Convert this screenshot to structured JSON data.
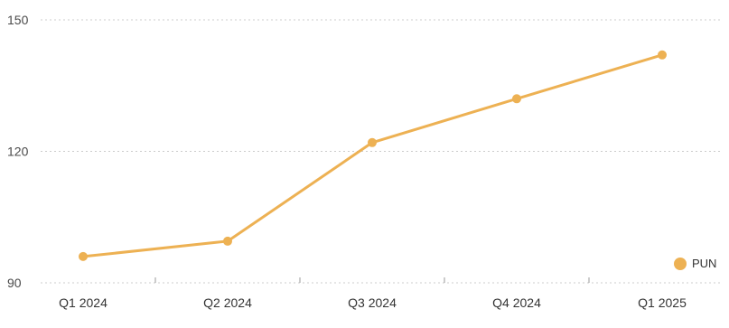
{
  "chart_data": {
    "type": "line",
    "title": "",
    "xlabel": "",
    "ylabel": "",
    "categories": [
      "Q1 2024",
      "Q2 2024",
      "Q3 2024",
      "Q4 2024",
      "Q1 2025"
    ],
    "series": [
      {
        "name": "PUN",
        "values": [
          96,
          99.5,
          122,
          132,
          142
        ],
        "color": "#EDB153"
      }
    ],
    "ylim": [
      90,
      150
    ],
    "yticks": [
      90,
      120,
      150
    ],
    "grid": true,
    "legend_placement": "bottom-right",
    "colors": {
      "grid": "#cccccc",
      "axis": "#9a9a9a",
      "line": "#EDB153"
    }
  }
}
